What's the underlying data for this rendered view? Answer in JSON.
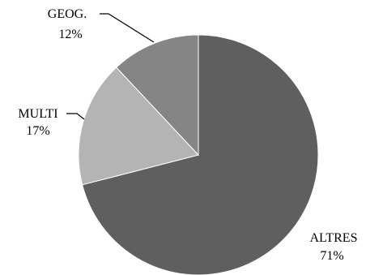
{
  "chart_data": {
    "type": "pie",
    "title": "",
    "slices": [
      {
        "label": "ALTRES",
        "value": 71,
        "value_label": "71%",
        "color": "#5f5f5f"
      },
      {
        "label": "MULTI",
        "value": 17,
        "value_label": "17%",
        "color": "#b4b4b4"
      },
      {
        "label": "GEOG.",
        "value": 12,
        "value_label": "12%",
        "color": "#858585"
      }
    ],
    "start": "12 o'clock",
    "direction": "clockwise",
    "legend": "none",
    "slice_border_color": "#ffffff"
  }
}
